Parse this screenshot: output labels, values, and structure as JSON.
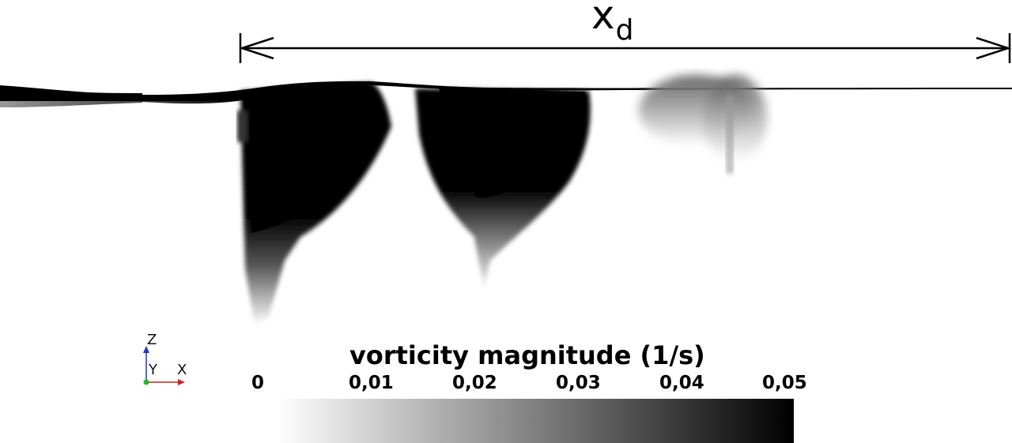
{
  "dimension": {
    "symbol": "x",
    "subscript": "d"
  },
  "colorbar": {
    "title": "vorticity magnitude (1/s)",
    "min": 0,
    "max": 0.05,
    "tick_labels": [
      "0",
      "0,01",
      "0,02",
      "0,03",
      "0,04",
      "0,05"
    ],
    "color_low": "#ffffff",
    "color_high": "#000000"
  },
  "axes_triad": {
    "z": "Z",
    "y": "Y",
    "x": "X"
  }
}
